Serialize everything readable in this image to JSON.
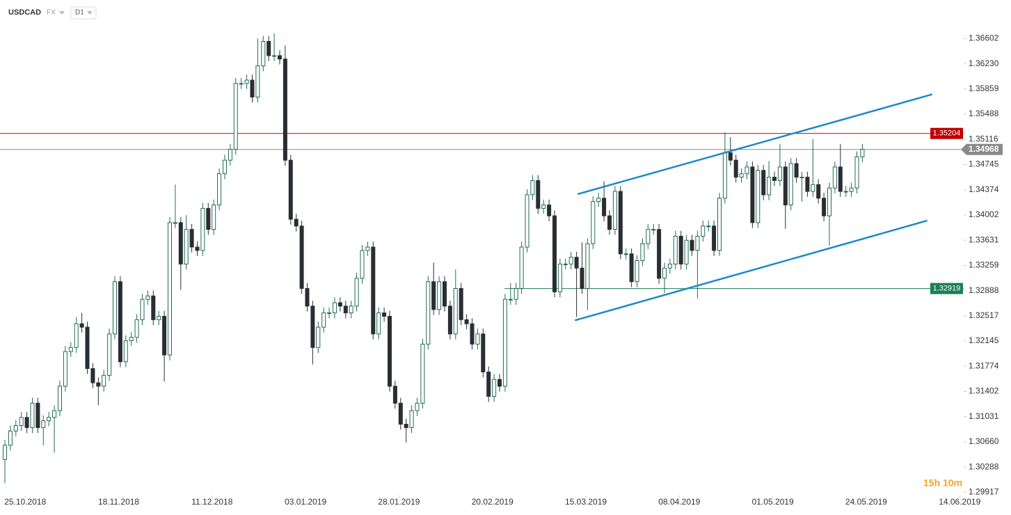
{
  "header": {
    "symbol": "USDCAD",
    "market": "FX",
    "timeframe": "D1"
  },
  "chart_data": {
    "type": "candlestick",
    "up_color": "#1f6b4e",
    "down_color": "#2a2e33",
    "open": [
      1.304,
      1.3061,
      1.3082,
      1.309,
      1.3102,
      1.3087,
      1.3123,
      1.3087,
      1.3097,
      1.3102,
      1.3112,
      1.3148,
      1.3199,
      1.3205,
      1.324,
      1.3235,
      1.3174,
      1.3153,
      1.3148,
      1.3164,
      1.3225,
      1.3302,
      1.3184,
      1.3215,
      1.322,
      1.3246,
      1.3276,
      1.3281,
      1.3246,
      1.3251,
      1.3194,
      1.3389,
      1.3389,
      1.3328,
      1.3379,
      1.3353,
      1.3348,
      1.341,
      1.3379,
      1.3415,
      1.3461,
      1.3481,
      1.3497,
      1.3594,
      1.3594,
      1.3599,
      1.3574,
      1.362,
      1.3656,
      1.3635,
      1.3635,
      1.363,
      1.3481,
      1.3394,
      1.3384,
      1.3292,
      1.3266,
      1.3205,
      1.3235,
      1.3256,
      1.3256,
      1.3271,
      1.3266,
      1.3256,
      1.3266,
      1.3307,
      1.3348,
      1.3353,
      1.3225,
      1.3256,
      1.3251,
      1.3148,
      1.3123,
      1.3092,
      1.3087,
      1.3112,
      1.3123,
      1.321,
      1.3302,
      1.3261,
      1.3302,
      1.3266,
      1.3225,
      1.3292,
      1.3246,
      1.324,
      1.321,
      1.3225,
      1.3169,
      1.3133,
      1.3158,
      1.3148,
      1.3276,
      1.3276,
      1.3292,
      1.3353,
      1.343,
      1.3451,
      1.341,
      1.3415,
      1.3399,
      1.3287,
      1.3328,
      1.3328,
      1.3338,
      1.3322,
      1.3292,
      1.3358,
      1.342,
      1.3425,
      1.3399,
      1.3379,
      1.3435,
      1.3343,
      1.3343,
      1.3302,
      1.3333,
      1.3358,
      1.3379,
      1.3379,
      1.3307,
      1.3322,
      1.3328,
      1.3369,
      1.3328,
      1.3363,
      1.3348,
      1.3369,
      1.3384,
      1.3384,
      1.3348,
      1.3425,
      1.3492,
      1.3481,
      1.3456,
      1.3461,
      1.3471,
      1.3389,
      1.3466,
      1.343,
      1.3456,
      1.3451,
      1.3471,
      1.3415,
      1.3476,
      1.3456,
      1.3456,
      1.3435,
      1.3445,
      1.3425,
      1.3399,
      1.344,
      1.3471,
      1.3435,
      1.3435,
      1.344,
      1.3486
    ],
    "high": [
      1.3069,
      1.309,
      1.3098,
      1.311,
      1.311,
      1.3131,
      1.3131,
      1.3105,
      1.311,
      1.312,
      1.3156,
      1.3207,
      1.3213,
      1.325,
      1.3256,
      1.3243,
      1.3182,
      1.3161,
      1.3172,
      1.3233,
      1.331,
      1.331,
      1.3223,
      1.3228,
      1.3254,
      1.3284,
      1.3289,
      1.3289,
      1.3259,
      1.3259,
      1.3397,
      1.3445,
      1.3397,
      1.34,
      1.3387,
      1.3361,
      1.3418,
      1.3418,
      1.3423,
      1.3469,
      1.3489,
      1.3505,
      1.3602,
      1.3602,
      1.3607,
      1.3607,
      1.366,
      1.3664,
      1.3664,
      1.3668,
      1.3643,
      1.365,
      1.3489,
      1.3402,
      1.3392,
      1.33,
      1.3274,
      1.3243,
      1.3264,
      1.3264,
      1.3279,
      1.3279,
      1.3274,
      1.3274,
      1.3315,
      1.3356,
      1.3361,
      1.3361,
      1.3264,
      1.3264,
      1.3259,
      1.3156,
      1.3131,
      1.31,
      1.312,
      1.3131,
      1.3218,
      1.331,
      1.333,
      1.331,
      1.331,
      1.3274,
      1.332,
      1.33,
      1.3254,
      1.3248,
      1.3233,
      1.3233,
      1.3177,
      1.3166,
      1.3166,
      1.3284,
      1.33,
      1.33,
      1.3361,
      1.3438,
      1.3459,
      1.3459,
      1.3423,
      1.3423,
      1.3407,
      1.3336,
      1.3336,
      1.3346,
      1.3346,
      1.336,
      1.3366,
      1.3428,
      1.3433,
      1.345,
      1.3407,
      1.3443,
      1.3443,
      1.3351,
      1.3351,
      1.3341,
      1.3366,
      1.3387,
      1.3387,
      1.3387,
      1.333,
      1.3336,
      1.3377,
      1.3377,
      1.3371,
      1.3371,
      1.3377,
      1.3392,
      1.3392,
      1.3392,
      1.3433,
      1.3522,
      1.3515,
      1.3489,
      1.3469,
      1.3479,
      1.3479,
      1.3474,
      1.3474,
      1.348,
      1.3464,
      1.3505,
      1.3479,
      1.3484,
      1.3484,
      1.3464,
      1.3464,
      1.3512,
      1.3453,
      1.3433,
      1.3448,
      1.3479,
      1.3505,
      1.3443,
      1.3448,
      1.3494,
      1.3505
    ],
    "low": [
      1.3005,
      1.3053,
      1.3074,
      1.3082,
      1.3079,
      1.3079,
      1.3079,
      1.3061,
      1.3089,
      1.305,
      1.3104,
      1.314,
      1.3191,
      1.3197,
      1.3227,
      1.3166,
      1.3145,
      1.312,
      1.314,
      1.3156,
      1.3217,
      1.3176,
      1.3176,
      1.3207,
      1.3212,
      1.3238,
      1.3268,
      1.3238,
      1.3238,
      1.3155,
      1.3186,
      1.3381,
      1.329,
      1.332,
      1.3345,
      1.334,
      1.334,
      1.3371,
      1.3371,
      1.3407,
      1.3453,
      1.3473,
      1.3489,
      1.3586,
      1.3586,
      1.3566,
      1.3566,
      1.3612,
      1.3627,
      1.3627,
      1.3622,
      1.3473,
      1.3386,
      1.3376,
      1.3284,
      1.3258,
      1.318,
      1.3197,
      1.3227,
      1.3248,
      1.3248,
      1.3258,
      1.3248,
      1.3248,
      1.3258,
      1.3299,
      1.334,
      1.3217,
      1.3217,
      1.3243,
      1.314,
      1.3115,
      1.3084,
      1.3065,
      1.3079,
      1.3104,
      1.3115,
      1.3202,
      1.3253,
      1.3253,
      1.3258,
      1.3217,
      1.3217,
      1.3238,
      1.3232,
      1.3202,
      1.3202,
      1.3161,
      1.3125,
      1.3125,
      1.314,
      1.314,
      1.3268,
      1.3268,
      1.3284,
      1.3345,
      1.3422,
      1.3402,
      1.3402,
      1.3391,
      1.3279,
      1.3279,
      1.332,
      1.332,
      1.325,
      1.3284,
      1.326,
      1.335,
      1.3412,
      1.3391,
      1.3371,
      1.3371,
      1.3335,
      1.3335,
      1.3294,
      1.3294,
      1.3325,
      1.335,
      1.3371,
      1.3299,
      1.3285,
      1.3314,
      1.332,
      1.332,
      1.332,
      1.334,
      1.3277,
      1.3361,
      1.3376,
      1.334,
      1.334,
      1.3417,
      1.3473,
      1.3448,
      1.3448,
      1.3453,
      1.3381,
      1.3381,
      1.3422,
      1.3422,
      1.3443,
      1.3443,
      1.338,
      1.3407,
      1.3448,
      1.342,
      1.3427,
      1.3427,
      1.3417,
      1.3391,
      1.3355,
      1.3432,
      1.3427,
      1.3427,
      1.3427,
      1.3432,
      1.3478
    ],
    "close": [
      1.3061,
      1.3082,
      1.309,
      1.3102,
      1.3087,
      1.3123,
      1.3087,
      1.3097,
      1.3102,
      1.3112,
      1.3148,
      1.3199,
      1.3205,
      1.324,
      1.3235,
      1.3174,
      1.3153,
      1.3148,
      1.3164,
      1.3225,
      1.3302,
      1.3184,
      1.3215,
      1.322,
      1.3246,
      1.3276,
      1.3281,
      1.3246,
      1.3251,
      1.3194,
      1.3389,
      1.3389,
      1.3328,
      1.3379,
      1.3353,
      1.3348,
      1.341,
      1.3379,
      1.3415,
      1.3461,
      1.3481,
      1.3497,
      1.3594,
      1.3594,
      1.3599,
      1.3574,
      1.362,
      1.3656,
      1.3635,
      1.3635,
      1.363,
      1.3481,
      1.3394,
      1.3384,
      1.3292,
      1.3266,
      1.3205,
      1.3235,
      1.3256,
      1.3256,
      1.3271,
      1.3266,
      1.3256,
      1.3266,
      1.3307,
      1.3348,
      1.3353,
      1.3225,
      1.3256,
      1.3251,
      1.3148,
      1.3123,
      1.3092,
      1.3087,
      1.3112,
      1.3123,
      1.321,
      1.3302,
      1.3261,
      1.3302,
      1.3266,
      1.3225,
      1.3292,
      1.3246,
      1.324,
      1.321,
      1.3225,
      1.3169,
      1.3133,
      1.3158,
      1.3148,
      1.3276,
      1.3276,
      1.3292,
      1.3353,
      1.343,
      1.3451,
      1.341,
      1.3415,
      1.3399,
      1.3287,
      1.3328,
      1.3328,
      1.3338,
      1.3322,
      1.3292,
      1.3358,
      1.342,
      1.3425,
      1.3399,
      1.3379,
      1.3435,
      1.3343,
      1.3343,
      1.3302,
      1.3333,
      1.3358,
      1.3379,
      1.3379,
      1.3307,
      1.3322,
      1.3328,
      1.3369,
      1.3328,
      1.3363,
      1.3348,
      1.3369,
      1.3384,
      1.3384,
      1.3348,
      1.3425,
      1.3492,
      1.3481,
      1.3456,
      1.3461,
      1.3471,
      1.3389,
      1.3466,
      1.343,
      1.3456,
      1.3451,
      1.3471,
      1.3415,
      1.3476,
      1.3456,
      1.3456,
      1.3435,
      1.3445,
      1.3425,
      1.3399,
      1.344,
      1.3471,
      1.3435,
      1.3435,
      1.344,
      1.3486,
      1.3497
    ],
    "xlim": [
      -0.886,
      174.43
    ],
    "xticks": [
      {
        "value": 3.7,
        "label": "25.10.2018"
      },
      {
        "value": 20.7,
        "label": "18.11.2018"
      },
      {
        "value": 37.7,
        "label": "11.12.2018"
      },
      {
        "value": 54.7,
        "label": "03.01.2019"
      },
      {
        "value": 71.7,
        "label": "28.01.2019"
      },
      {
        "value": 88.7,
        "label": "20.02.2019"
      },
      {
        "value": 105.7,
        "label": "15.03.2019"
      },
      {
        "value": 122.7,
        "label": "08.04.2019"
      },
      {
        "value": 139.7,
        "label": "01.05.2019"
      },
      {
        "value": 156.7,
        "label": "24.05.2019"
      },
      {
        "value": 173.7,
        "label": "14.06.2019"
      }
    ],
    "ylim": [
      1.2989,
      1.3717
    ],
    "yticks": [
      1.36602,
      {
        "value": 1.3623,
        "label": "1.36230"
      },
      1.35859,
      1.35488,
      1.35116,
      1.34745,
      1.34374,
      1.34002,
      1.33631,
      1.33259,
      1.32888,
      1.32517,
      1.32145,
      1.31774,
      1.31402,
      1.31031,
      {
        "value": 1.3066,
        "label": "1.30660"
      },
      1.30288,
      1.29917
    ],
    "grid": false,
    "levels": [
      {
        "value": 1.35204,
        "color": "#c00000"
      },
      {
        "value": 1.34968,
        "color": "#8a8a8a"
      },
      {
        "value": 1.32919,
        "color": "#1a7f55",
        "from": 90.9
      }
    ],
    "trendlines": [
      {
        "color": "#1e88c8",
        "x": [
          104.2,
          168.7
        ],
        "y": [
          1.3431,
          1.3578
        ]
      },
      {
        "color": "#1e88c8",
        "x": [
          103.7,
          167.8
        ],
        "y": [
          1.3245,
          1.3392
        ]
      }
    ],
    "countdown": "15h 10m"
  }
}
